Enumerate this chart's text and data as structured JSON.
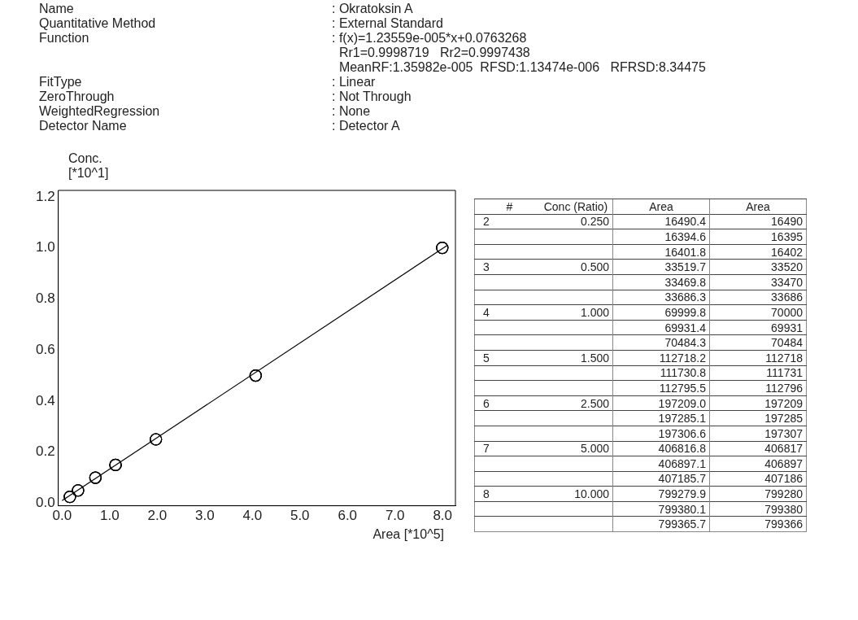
{
  "chart_data": {
    "type": "scatter",
    "xlabel": "Area [*10^5]",
    "ylabel": "Conc.\n[*10^1]",
    "series": [
      {
        "type": "scatter",
        "color": "#000000",
        "x": [
          0.1649,
          0.1639,
          0.164,
          0.3352,
          0.3347,
          0.3369,
          0.7,
          0.6993,
          0.7048,
          1.1272,
          1.1173,
          1.128,
          1.9721,
          1.9729,
          1.9731,
          4.0682,
          4.069,
          4.0719,
          7.9928,
          7.9938,
          7.9937
        ],
        "values": [
          0.025,
          0.025,
          0.025,
          0.05,
          0.05,
          0.05,
          0.1,
          0.1,
          0.1,
          0.15,
          0.15,
          0.15,
          0.25,
          0.25,
          0.25,
          0.5,
          0.5,
          0.5,
          1.0,
          1.0,
          1.0
        ]
      },
      {
        "type": "line",
        "color": "#000000",
        "marker": "none",
        "x": [
          0,
          8.1
        ],
        "values": [
          0.01,
          1.01
        ]
      }
    ],
    "xlim": [
      -0.08,
      8.27
    ],
    "ylim": [
      -0.01,
      1.225
    ],
    "xticks": [
      {
        "value": 0,
        "label": "0.0"
      },
      {
        "value": 1,
        "label": "1.0"
      },
      {
        "value": 2,
        "label": "2.0"
      },
      {
        "value": 3,
        "label": "3.0"
      },
      {
        "value": 4,
        "label": "4.0"
      },
      {
        "value": 5,
        "label": "5.0"
      },
      {
        "value": 6,
        "label": "6.0"
      },
      {
        "value": 7,
        "label": "7.0"
      },
      {
        "value": 8,
        "label": "8.0"
      }
    ],
    "yticks": [
      {
        "value": 0,
        "label": "0.0"
      },
      {
        "value": 0.2,
        "label": "0.2"
      },
      {
        "value": 0.4,
        "label": "0.4"
      },
      {
        "value": 0.6,
        "label": "0.6"
      },
      {
        "value": 0.8,
        "label": "0.8"
      },
      {
        "value": 1,
        "label": "1.0"
      },
      {
        "value": 1.2,
        "label": "1.2"
      }
    ],
    "grid": false,
    "legend": false,
    "marker": "circle",
    "line_style": "solid",
    "annotations": [
      "Name",
      ": Okratoksin A",
      "Quantitative Method",
      ": External Standard",
      "Function",
      ": f(x)=1.23559e-005*x+0.0763268\n  Rr1=0.9998719   Rr2=0.9997438\n  MeanRF:1.35982e-005  RFSD:1.13474e-006   RFRSD:8.34475",
      "FitType",
      ": Linear",
      "ZeroThrough",
      ": Not Through",
      "WeightedRegression",
      ": None",
      "Detector Name",
      ": Detector A",
      "#\n2\n\n\n3\n\n\n4\n\n\n5\n\n\n6\n\n\n7\n\n\n8\n\n",
      "Conc (Ratio)\n0.250\n\n\n0.500\n\n\n1.000\n\n\n1.500\n\n\n2.500\n\n\n5.000\n\n\n10.000\n\n",
      "Area\n16490.4\n16394.6\n16401.8\n33519.7\n33469.8\n33686.3\n69999.8\n69931.4\n70484.3\n112718.2\n111730.8\n112795.5\n197209.0\n197285.1\n197306.6\n406816.8\n406897.1\n407185.7\n799279.9\n799380.1\n799365.7",
      "Area\n16490\n16395\n16402\n33520\n33470\n33686\n70000\n69931\n70484\n112718\n111731\n112796\n197209\n197285\n197307\n406817\n406897\n407186\n799280\n799380\n799366"
    ]
  }
}
